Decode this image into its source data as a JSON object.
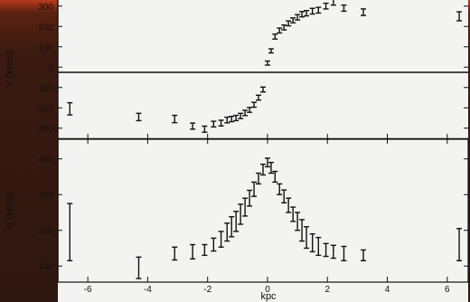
{
  "chart_data": [
    {
      "type": "scatter",
      "title": "",
      "xlabel": "",
      "ylabel": "V (km/s)",
      "xlim": [
        -7,
        6.7
      ],
      "ylim": [
        -350,
        330
      ],
      "yticks": [
        -300,
        -200,
        -100,
        0,
        100,
        200,
        300
      ],
      "zero_line": true,
      "x": [
        -6.6,
        -4.3,
        -3.1,
        -2.5,
        -2.1,
        -1.8,
        -1.55,
        -1.35,
        -1.2,
        -1.05,
        -0.9,
        -0.75,
        -0.6,
        -0.45,
        -0.3,
        -0.15,
        0.0,
        0.12,
        0.25,
        0.4,
        0.55,
        0.7,
        0.85,
        1.0,
        1.15,
        1.3,
        1.5,
        1.7,
        1.95,
        2.2,
        2.55,
        3.2,
        6.4
      ],
      "y": [
        -205,
        -245,
        -255,
        -290,
        -305,
        -280,
        -275,
        -260,
        -255,
        -250,
        -240,
        -225,
        -210,
        -185,
        -150,
        -110,
        20,
        80,
        150,
        180,
        195,
        215,
        230,
        245,
        260,
        265,
        275,
        280,
        300,
        320,
        290,
        270,
        250
      ],
      "yerr": [
        30,
        18,
        18,
        15,
        15,
        14,
        14,
        14,
        13,
        13,
        13,
        13,
        12,
        12,
        12,
        12,
        10,
        10,
        12,
        12,
        12,
        12,
        12,
        13,
        13,
        13,
        14,
        14,
        14,
        15,
        15,
        16,
        22
      ]
    },
    {
      "type": "scatter",
      "title": "",
      "xlabel": "kpc",
      "ylabel": "σ (km/s)",
      "xlim": [
        -7,
        6.7
      ],
      "ylim": [
        55,
        455
      ],
      "xticks": [
        -6,
        -4,
        -2,
        0,
        2,
        4,
        6
      ],
      "yticks": [
        100,
        200,
        300,
        400
      ],
      "x": [
        -6.6,
        -4.3,
        -3.1,
        -2.5,
        -2.1,
        -1.8,
        -1.55,
        -1.35,
        -1.2,
        -1.05,
        -0.9,
        -0.75,
        -0.6,
        -0.45,
        -0.3,
        -0.15,
        0.0,
        0.12,
        0.25,
        0.4,
        0.55,
        0.7,
        0.85,
        1.0,
        1.15,
        1.3,
        1.5,
        1.7,
        1.95,
        2.2,
        2.55,
        3.2,
        6.4
      ],
      "y": [
        195,
        95,
        135,
        140,
        145,
        160,
        175,
        195,
        210,
        225,
        245,
        265,
        290,
        315,
        345,
        370,
        390,
        375,
        350,
        315,
        295,
        270,
        245,
        225,
        200,
        180,
        165,
        155,
        145,
        140,
        135,
        130,
        160
      ],
      "yerr": [
        80,
        30,
        18,
        20,
        15,
        18,
        22,
        25,
        28,
        28,
        28,
        25,
        22,
        20,
        15,
        15,
        12,
        15,
        15,
        15,
        18,
        20,
        20,
        25,
        30,
        30,
        25,
        25,
        18,
        18,
        20,
        15,
        45
      ]
    }
  ]
}
